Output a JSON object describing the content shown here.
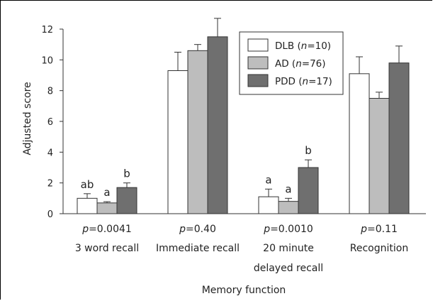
{
  "chart_data": {
    "type": "bar",
    "ylabel": "Adjusted score",
    "xlabel": "Memory function",
    "ylim": [
      0,
      12
    ],
    "yticks": [
      0,
      2,
      4,
      6,
      8,
      10,
      12
    ],
    "categories": [
      {
        "lines": [
          "3 word recall"
        ],
        "p_prefix": "p",
        "p_value": "=0.0041"
      },
      {
        "lines": [
          "Immediate recall"
        ],
        "p_prefix": "p",
        "p_value": "=0.40"
      },
      {
        "lines": [
          "20 minute",
          "delayed recall"
        ],
        "p_prefix": "p",
        "p_value": "=0.0010"
      },
      {
        "lines": [
          "Recognition"
        ],
        "p_prefix": "p",
        "p_value": "=0.11"
      }
    ],
    "series": [
      {
        "name": "DLB",
        "n": "10",
        "color": "#ffffff",
        "values": [
          1.0,
          9.3,
          1.1,
          9.1
        ],
        "errors": [
          0.3,
          1.2,
          0.5,
          1.1
        ]
      },
      {
        "name": "AD",
        "n": "76",
        "color": "#bdbdbd",
        "values": [
          0.7,
          10.6,
          0.8,
          7.5
        ],
        "errors": [
          0.08,
          0.4,
          0.2,
          0.4
        ]
      },
      {
        "name": "PDD",
        "n": "17",
        "color": "#6f6f6f",
        "values": [
          1.7,
          11.5,
          3.0,
          9.8
        ],
        "errors": [
          0.3,
          1.2,
          0.5,
          1.1
        ]
      }
    ],
    "significance_labels": [
      [
        "ab",
        "a",
        "b"
      ],
      [
        null,
        null,
        null
      ],
      [
        "a",
        "a",
        "b"
      ],
      [
        null,
        null,
        null
      ]
    ],
    "legend": {
      "position": "top-right",
      "n_label": "n"
    },
    "grid": false
  }
}
